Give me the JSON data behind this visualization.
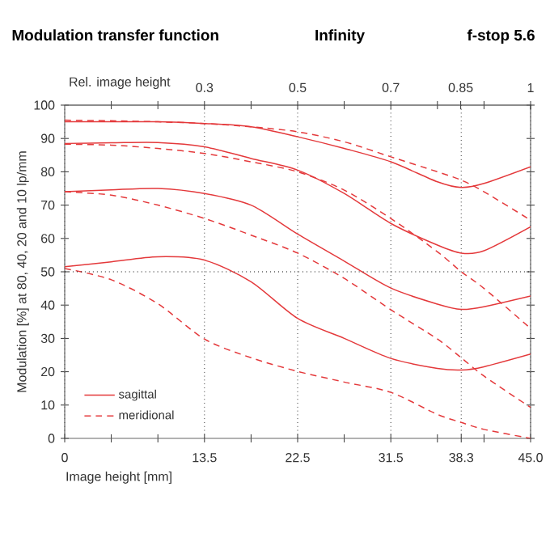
{
  "chart_data": {
    "type": "line",
    "title": "Modulation transfer function",
    "subtitle": "Infinity",
    "annotations": [
      "f-stop 5.6"
    ],
    "xlabel": "Image height [mm]",
    "ylabel": "Modulation [%] at 80, 40, 20 and 10 lp/mm",
    "x2label": "Rel. image height",
    "x": [
      0,
      4.5,
      9,
      13.5,
      18,
      22.5,
      27,
      31.5,
      36,
      38.3,
      40.5,
      45
    ],
    "series": [
      {
        "name": "sagittal",
        "color": "#e4393b",
        "line_style": "solid",
        "values": [
          95,
          95,
          95,
          94.5,
          93.5,
          90.5,
          87,
          83,
          77,
          75.3,
          76.5,
          81.5
        ]
      },
      {
        "name": "meridional",
        "color": "#e4393b",
        "line_style": "dashed",
        "values": [
          95.5,
          95.3,
          95,
          94.5,
          93.5,
          92,
          89,
          84.5,
          80,
          77.5,
          74,
          65.5
        ]
      },
      {
        "color": "#e4393b",
        "line_style": "solid",
        "values": [
          88.5,
          88.7,
          88.8,
          87.5,
          84,
          80.5,
          73.5,
          64.5,
          58,
          55.6,
          56.3,
          63.5
        ]
      },
      {
        "color": "#e4393b",
        "line_style": "dashed",
        "values": [
          88.3,
          88,
          87,
          85.5,
          83,
          80,
          74.5,
          66,
          56,
          50,
          45,
          33
        ]
      },
      {
        "color": "#e4393b",
        "line_style": "solid",
        "values": [
          74,
          74.6,
          75,
          73.5,
          70,
          61.3,
          53.2,
          45.1,
          40.3,
          38.7,
          39.5,
          42.7
        ]
      },
      {
        "color": "#e4393b",
        "line_style": "dashed",
        "values": [
          74,
          73,
          70,
          66,
          61,
          55.6,
          48,
          38.6,
          29.8,
          24.2,
          18.7,
          9.3
        ]
      },
      {
        "color": "#e4393b",
        "line_style": "solid",
        "values": [
          51.5,
          53,
          54.5,
          53.5,
          47,
          36,
          30,
          24,
          21,
          20.5,
          21.5,
          25.3
        ]
      },
      {
        "color": "#e4393b",
        "line_style": "dashed",
        "values": [
          51,
          47.6,
          40.4,
          29.8,
          24.2,
          20.1,
          16.9,
          13.8,
          7.2,
          4.8,
          2.7,
          0
        ]
      }
    ],
    "xlim": [
      0,
      45
    ],
    "ylim": [
      0,
      100
    ],
    "xticks": [
      0,
      {
        "value": 4.5,
        "label": null
      },
      {
        "value": 9,
        "label": null
      },
      13.5,
      {
        "value": 18,
        "label": null
      },
      22.5,
      {
        "value": 27,
        "label": null
      },
      31.5,
      {
        "value": 36,
        "label": null
      },
      38.3,
      {
        "value": 40.5,
        "label": null
      },
      {
        "value": 45,
        "label": "45.0"
      }
    ],
    "yticks": [
      0,
      10,
      20,
      30,
      40,
      50,
      60,
      70,
      80,
      90,
      100
    ],
    "x2lim": [
      0,
      1
    ],
    "x2ticks": [
      {
        "value": 0.1,
        "label": null
      },
      {
        "value": 0.2,
        "label": null
      },
      0.3,
      {
        "value": 0.4,
        "label": null
      },
      0.5,
      {
        "value": 0.6,
        "label": null
      },
      0.7,
      {
        "value": 0.8,
        "label": null
      },
      0.85,
      {
        "value": 0.9,
        "label": null
      },
      1
    ],
    "ref_lines": [
      {
        "axis": "y",
        "value": 50,
        "line_style": "dotted"
      }
    ],
    "grid": "x",
    "legend": "bottom left",
    "marker": "none"
  }
}
